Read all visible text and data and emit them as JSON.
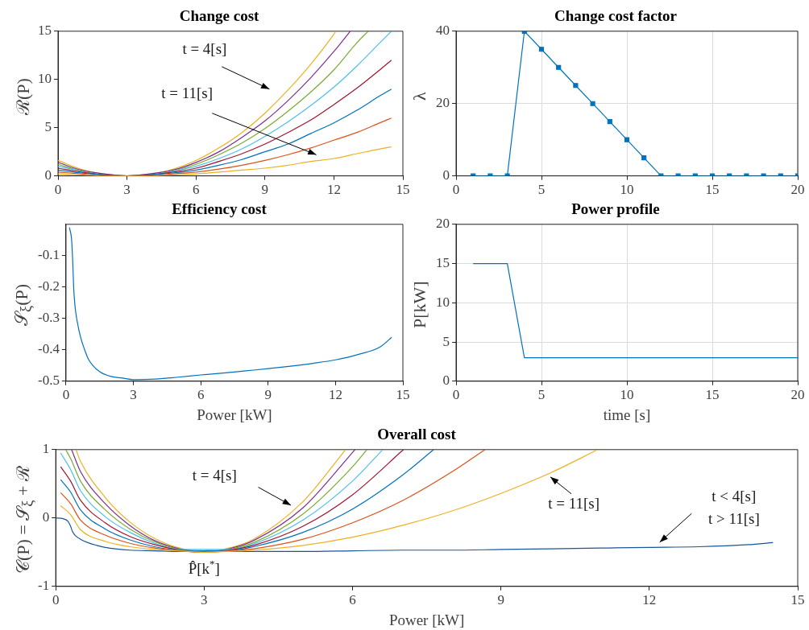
{
  "chart_data": [
    {
      "type": "line",
      "title": "Change cost",
      "ylabel": "ℛ(P)",
      "xlim": [
        0,
        15
      ],
      "ylim": [
        0,
        15
      ],
      "xticks": [
        0,
        3,
        6,
        9,
        12,
        15
      ],
      "yticks": [
        0,
        5,
        10,
        15
      ],
      "grid": false,
      "x": [
        0,
        1,
        2,
        3,
        4,
        5,
        6,
        7,
        8,
        9,
        10,
        11,
        12,
        13,
        14,
        14.5
      ],
      "series": [
        {
          "color": "#edb120",
          "values": [
            0.2,
            0.1,
            0,
            null,
            0,
            0.1,
            0.2,
            0.4,
            0.6,
            0.8,
            1.1,
            1.5,
            1.8,
            2.3,
            2.8,
            3.0
          ]
        },
        {
          "color": "#d95319",
          "values": [
            0.4,
            0.2,
            0,
            0,
            0,
            0.2,
            0.4,
            0.7,
            1.1,
            1.6,
            2.2,
            2.9,
            3.7,
            4.5,
            5.5,
            6.0
          ]
        },
        {
          "color": "#0072bd",
          "values": [
            0.6,
            0.3,
            0.1,
            0,
            0.1,
            0.3,
            0.6,
            1.1,
            1.7,
            2.5,
            3.3,
            4.4,
            5.5,
            6.8,
            8.3,
            9.0
          ]
        },
        {
          "color": "#a2142f",
          "values": [
            0.8,
            0.4,
            0.1,
            0,
            0.1,
            0.4,
            0.8,
            1.5,
            2.3,
            3.3,
            4.5,
            5.8,
            7.4,
            9.1,
            11.0,
            12.0
          ]
        },
        {
          "color": "#4dbeee",
          "values": [
            1.0,
            0.5,
            0.1,
            0,
            0.1,
            0.5,
            1.0,
            1.8,
            2.8,
            4.1,
            5.6,
            7.3,
            9.2,
            11.4,
            13.8,
            15
          ]
        },
        {
          "color": "#77ac30",
          "x": [
            0,
            1,
            2,
            3,
            4,
            5,
            6,
            7,
            8,
            9,
            10,
            11,
            12,
            13,
            13.49
          ],
          "values": [
            1.2,
            0.5,
            0.1,
            0,
            0.1,
            0.5,
            1.2,
            2.2,
            3.4,
            4.9,
            6.7,
            8.7,
            11.0,
            13.8,
            15
          ]
        },
        {
          "color": "#7e2f8e",
          "x": [
            0,
            1,
            2,
            3,
            4,
            5,
            6,
            7,
            8,
            9,
            10,
            11,
            12,
            12.71
          ],
          "values": [
            1.4,
            0.6,
            0.2,
            0,
            0.2,
            0.6,
            1.4,
            2.5,
            4.0,
            5.7,
            7.8,
            10.2,
            12.9,
            15
          ]
        },
        {
          "color": "#edb120",
          "x": [
            0,
            1,
            2,
            3,
            4,
            5,
            6,
            7,
            8,
            9,
            10,
            11,
            12,
            12.08
          ],
          "values": [
            1.6,
            0.7,
            0.2,
            0,
            0.2,
            0.7,
            1.6,
            2.9,
            4.5,
            6.5,
            8.9,
            11.6,
            14.7,
            15
          ]
        }
      ],
      "annotations": [
        "t = 4[s]",
        "t = 11[s]"
      ]
    },
    {
      "type": "line",
      "title": "Change cost factor",
      "ylabel": "λ",
      "xlim": [
        0,
        20
      ],
      "ylim": [
        0,
        40
      ],
      "xticks": [
        0,
        5,
        10,
        15,
        20
      ],
      "yticks": [
        0,
        20,
        40
      ],
      "grid": true,
      "marker": "square",
      "x": [
        1,
        2,
        3,
        4,
        5,
        6,
        7,
        8,
        9,
        10,
        11,
        12,
        13,
        14,
        15,
        16,
        17,
        18,
        19,
        20
      ],
      "series": [
        {
          "color": "#0072bd",
          "values": [
            0,
            0,
            0,
            40,
            35,
            30,
            25,
            20,
            15,
            10,
            5,
            0,
            0,
            0,
            0,
            0,
            0,
            0,
            0,
            0
          ]
        }
      ]
    },
    {
      "type": "line",
      "title": "Efficiency cost",
      "xlabel": "Power [kW]",
      "ylabel": "𝒮$_{ξ}$(P)",
      "xlim": [
        0,
        15
      ],
      "ylim": [
        -0.5,
        0
      ],
      "xticks": [
        0,
        3,
        6,
        9,
        12,
        15
      ],
      "yticks": [
        -0.5,
        -0.4,
        -0.3,
        -0.2,
        -0.1
      ],
      "grid": false,
      "x": [
        0.15,
        0.25,
        0.3,
        0.34,
        0.4,
        0.5,
        0.65,
        0.83,
        1,
        1.2,
        1.5,
        2,
        2.5,
        3,
        4,
        5,
        6,
        7,
        8,
        9,
        10,
        11,
        12,
        13,
        14,
        14.5
      ],
      "series": [
        {
          "color": "#0072bd",
          "values": [
            -0.01,
            -0.05,
            -0.12,
            -0.2,
            -0.26,
            -0.31,
            -0.36,
            -0.4,
            -0.43,
            -0.45,
            -0.47,
            -0.485,
            -0.49,
            -0.495,
            -0.493,
            -0.487,
            -0.48,
            -0.474,
            -0.467,
            -0.46,
            -0.452,
            -0.443,
            -0.432,
            -0.415,
            -0.39,
            -0.36
          ]
        }
      ]
    },
    {
      "type": "line",
      "title": "Power profile",
      "xlabel": "time [s]",
      "ylabel": "P[kW]",
      "xlim": [
        0,
        20
      ],
      "ylim": [
        0,
        20
      ],
      "xticks": [
        0,
        5,
        10,
        15,
        20
      ],
      "yticks": [
        0,
        5,
        10,
        15,
        20
      ],
      "grid": true,
      "x": [
        1,
        2,
        3,
        4,
        5,
        6,
        7,
        8,
        9,
        10,
        11,
        12,
        13,
        14,
        15,
        16,
        17,
        18,
        19,
        20
      ],
      "series": [
        {
          "color": "#0072bd",
          "values": [
            15,
            15,
            15,
            3,
            3,
            3,
            3,
            3,
            3,
            3,
            3,
            3,
            3,
            3,
            3,
            3,
            3,
            3,
            3,
            3
          ]
        }
      ]
    },
    {
      "type": "line",
      "title": "Overall cost",
      "xlabel": "Power [kW]",
      "ylabel": "𝒞(P) = 𝒮$_{ξ}$ + ℛ",
      "xlim": [
        0,
        15
      ],
      "ylim": [
        -1,
        1
      ],
      "xticks": [
        0,
        3,
        6,
        9,
        12,
        15
      ],
      "yticks": [
        -1,
        0,
        1
      ],
      "grid": false,
      "series": [
        {
          "color": "#edb120",
          "x": [
            0.1,
            0.3,
            0.5,
            1,
            1.5,
            2,
            2.5,
            3,
            3.5,
            4,
            5,
            6,
            7,
            8,
            9,
            10,
            10.96
          ],
          "values": [
            0.18,
            0.05,
            -0.17,
            -0.34,
            -0.42,
            -0.46,
            -0.48,
            -0.5,
            -0.49,
            -0.47,
            -0.4,
            -0.28,
            -0.11,
            0.1,
            0.36,
            0.66,
            1
          ]
        },
        {
          "color": "#d95319",
          "x": [
            0.1,
            0.3,
            0.5,
            1,
            1.5,
            2,
            2.5,
            3,
            3.5,
            4,
            5,
            6,
            7,
            8,
            8.68
          ],
          "values": [
            0.37,
            0.21,
            -0.03,
            -0.25,
            -0.37,
            -0.44,
            -0.48,
            -0.5,
            -0.48,
            -0.45,
            -0.31,
            -0.07,
            0.25,
            0.67,
            1
          ]
        },
        {
          "color": "#0072bd",
          "x": [
            0.1,
            0.3,
            0.5,
            1,
            1.5,
            2,
            2.5,
            3,
            3.5,
            4,
            5,
            6,
            7,
            7.64
          ],
          "values": [
            0.56,
            0.38,
            0.12,
            -0.16,
            -0.32,
            -0.42,
            -0.47,
            null,
            -0.48,
            -0.42,
            -0.21,
            0.13,
            0.62,
            1
          ]
        },
        {
          "color": "#a2142f",
          "x": [
            0.1,
            0.3,
            0.5,
            1,
            1.5,
            2,
            2.5,
            3,
            3.5,
            4,
            5,
            6,
            7.03
          ],
          "values": [
            0.75,
            0.54,
            0.26,
            -0.07,
            -0.27,
            -0.39,
            -0.47,
            -0.5,
            -0.47,
            -0.4,
            -0.12,
            0.34,
            1
          ]
        },
        {
          "color": "#4dbeee",
          "x": [
            0.1,
            0.3,
            0.5,
            1,
            1.5,
            2,
            2.5,
            3,
            3.5,
            4,
            5,
            6,
            6.61
          ],
          "values": [
            0.95,
            0.71,
            0.4,
            0.02,
            -0.21,
            -0.37,
            -0.46,
            null,
            -0.46,
            -0.38,
            -0.03,
            0.54,
            1
          ]
        },
        {
          "color": "#77ac30",
          "x": [
            0.2,
            0.3,
            0.5,
            1,
            1.5,
            2,
            2.5,
            3,
            3.5,
            4,
            5,
            6,
            6.29
          ],
          "values": [
            1,
            0.87,
            0.54,
            0.12,
            -0.16,
            -0.35,
            -0.46,
            -0.5,
            -0.46,
            -0.36,
            0.06,
            0.75,
            1
          ]
        },
        {
          "color": "#7e2f8e",
          "x": [
            0.32,
            0.5,
            1,
            1.5,
            2,
            2.5,
            3,
            3.5,
            4,
            5,
            6.05
          ],
          "values": [
            1,
            0.68,
            0.21,
            -0.11,
            -0.33,
            -0.45,
            -0.5,
            -0.45,
            -0.33,
            0.15,
            1
          ]
        },
        {
          "color": "#edb120",
          "x": [
            0.41,
            0.5,
            1,
            1.5,
            2,
            2.5,
            3,
            3.5,
            4,
            5,
            5.86
          ],
          "values": [
            1,
            0.83,
            0.3,
            -0.06,
            -0.3,
            -0.44,
            -0.5,
            -0.44,
            -0.31,
            0.24,
            1
          ]
        },
        {
          "color": "#1a5599",
          "x": [
            0,
            0.15,
            0.25,
            0.3,
            0.34,
            0.4,
            0.5,
            0.65,
            0.83,
            1,
            1.2,
            1.5,
            2,
            2.5,
            3,
            4,
            5,
            6,
            7,
            8,
            9,
            10,
            11,
            12,
            13,
            14,
            14.5
          ],
          "values": [
            0,
            -0.01,
            -0.05,
            -0.12,
            -0.2,
            -0.26,
            -0.31,
            -0.36,
            -0.4,
            -0.43,
            -0.45,
            -0.47,
            -0.48,
            -0.49,
            null,
            -0.49,
            -0.49,
            -0.48,
            -0.47,
            -0.47,
            -0.46,
            -0.45,
            -0.44,
            -0.43,
            -0.42,
            -0.39,
            -0.36
          ]
        }
      ],
      "annotations": [
        "t = 4[s]",
        {
          "text": "t = 11[s]",
          "x": 10,
          "y": 0.6
        },
        "t < 4[s]",
        "t > 11[s]",
        {
          "text": "P̂[k$^{*}$]",
          "x": 3,
          "y": -0.5
        }
      ]
    }
  ]
}
